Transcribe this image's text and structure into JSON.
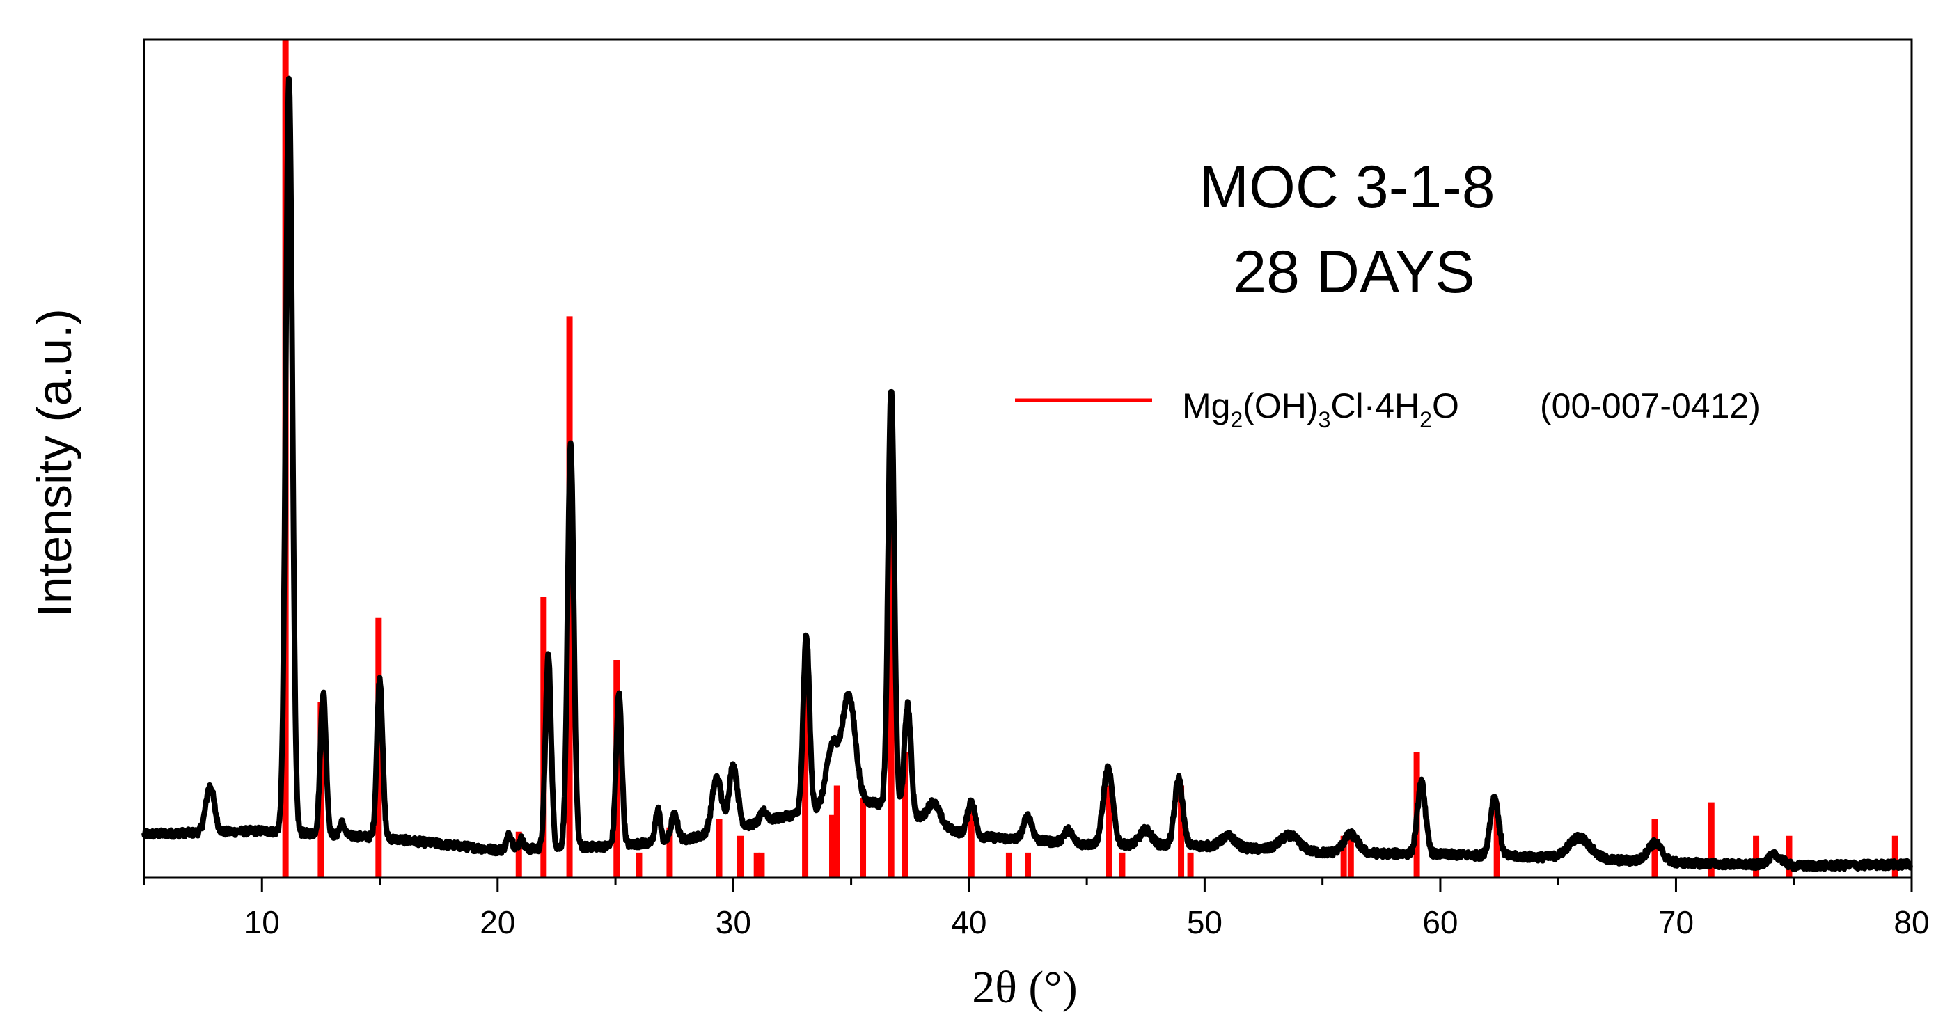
{
  "chart_data": {
    "type": "line",
    "title": "MOC 3-1-8",
    "subtitle": "28 DAYS",
    "xlabel": "2θ (°)",
    "ylabel": "Intensity (a.u.)",
    "xlim": [
      5,
      80
    ],
    "ylim": [
      0,
      100
    ],
    "xticks": [
      10,
      20,
      30,
      40,
      50,
      60,
      70,
      80
    ],
    "y_ticks_shown": false,
    "legend": {
      "placement": "center-right",
      "entries": [
        {
          "label_parts": [
            "Mg",
            "2",
            "(OH)",
            "3",
            "Cl·4H",
            "2",
            "O"
          ],
          "reference": "(00-007-0412)",
          "color": "#ff0000",
          "marker": "line"
        }
      ]
    },
    "colors": {
      "pattern": "#000000",
      "reference": "#ff0000",
      "axes": "#000000"
    },
    "series": [
      {
        "name": "MOC 3-1-8 28 days pattern",
        "kind": "peaks",
        "color": "#000000",
        "background": [
          [
            5,
            5.2
          ],
          [
            10,
            5.6
          ],
          [
            15,
            4.8
          ],
          [
            20,
            3.3
          ],
          [
            25,
            3.8
          ],
          [
            28,
            4.6
          ],
          [
            31,
            6.5
          ],
          [
            34,
            8.5
          ],
          [
            36,
            9
          ],
          [
            38,
            7
          ],
          [
            40,
            5
          ],
          [
            45,
            4
          ],
          [
            50,
            3.8
          ],
          [
            55,
            3
          ],
          [
            60,
            2.8
          ],
          [
            65,
            2.4
          ],
          [
            70,
            1.8
          ],
          [
            75,
            1.4
          ],
          [
            80,
            1.6
          ]
        ],
        "peaks": [
          {
            "x": 7.8,
            "height": 5.5,
            "width": 0.18
          },
          {
            "x": 11.15,
            "height": 90,
            "width": 0.14
          },
          {
            "x": 12.6,
            "height": 17,
            "width": 0.12
          },
          {
            "x": 13.4,
            "height": 1.5,
            "width": 0.1
          },
          {
            "x": 15.0,
            "height": 19,
            "width": 0.12
          },
          {
            "x": 20.5,
            "height": 1.8,
            "width": 0.12
          },
          {
            "x": 21.0,
            "height": 1.2,
            "width": 0.1
          },
          {
            "x": 22.15,
            "height": 23,
            "width": 0.12
          },
          {
            "x": 23.1,
            "height": 48,
            "width": 0.13
          },
          {
            "x": 25.15,
            "height": 18,
            "width": 0.12
          },
          {
            "x": 26.8,
            "height": 4,
            "width": 0.1
          },
          {
            "x": 27.5,
            "height": 3,
            "width": 0.14
          },
          {
            "x": 29.3,
            "height": 6.5,
            "width": 0.2
          },
          {
            "x": 30.0,
            "height": 7.5,
            "width": 0.18
          },
          {
            "x": 31.3,
            "height": 1.2,
            "width": 0.15
          },
          {
            "x": 33.1,
            "height": 21,
            "width": 0.13
          },
          {
            "x": 34.2,
            "height": 7,
            "width": 0.25
          },
          {
            "x": 34.9,
            "height": 13,
            "width": 0.28
          },
          {
            "x": 36.7,
            "height": 50,
            "width": 0.13
          },
          {
            "x": 37.4,
            "height": 13,
            "width": 0.14
          },
          {
            "x": 38.5,
            "height": 2.5,
            "width": 0.25
          },
          {
            "x": 40.1,
            "height": 4.2,
            "width": 0.16
          },
          {
            "x": 42.5,
            "height": 2.8,
            "width": 0.18
          },
          {
            "x": 44.2,
            "height": 1.5,
            "width": 0.18
          },
          {
            "x": 45.9,
            "height": 9,
            "width": 0.2
          },
          {
            "x": 47.5,
            "height": 1.8,
            "width": 0.25
          },
          {
            "x": 48.9,
            "height": 8,
            "width": 0.17
          },
          {
            "x": 51.0,
            "height": 1.3,
            "width": 0.3
          },
          {
            "x": 53.6,
            "height": 1.8,
            "width": 0.4
          },
          {
            "x": 56.2,
            "height": 2.2,
            "width": 0.3
          },
          {
            "x": 59.2,
            "height": 8.5,
            "width": 0.17
          },
          {
            "x": 62.3,
            "height": 7,
            "width": 0.18
          },
          {
            "x": 65.9,
            "height": 2.5,
            "width": 0.45
          },
          {
            "x": 69.1,
            "height": 2.2,
            "width": 0.3
          },
          {
            "x": 74.2,
            "height": 1.2,
            "width": 0.3
          }
        ]
      },
      {
        "name": "Mg2(OH)3Cl·4H2O (00-007-0412)",
        "kind": "sticks",
        "color": "#ff0000",
        "x": [
          11.0,
          12.5,
          14.95,
          20.9,
          21.95,
          23.05,
          25.05,
          26.0,
          27.3,
          29.4,
          30.3,
          31.0,
          31.2,
          33.05,
          34.2,
          34.4,
          35.5,
          36.7,
          37.3,
          40.1,
          41.7,
          42.5,
          45.95,
          46.5,
          49.0,
          49.4,
          55.9,
          56.2,
          59.0,
          62.4,
          69.1,
          71.5,
          73.4,
          74.8,
          79.3
        ],
        "values": [
          100,
          21,
          31,
          5.5,
          33.5,
          67,
          26,
          3,
          6,
          7,
          5,
          3,
          3,
          26,
          7.5,
          11,
          9.5,
          51,
          15,
          9,
          3,
          3,
          11,
          3,
          11,
          3,
          5,
          5,
          15,
          9,
          7,
          9,
          5,
          5,
          5
        ]
      }
    ]
  }
}
